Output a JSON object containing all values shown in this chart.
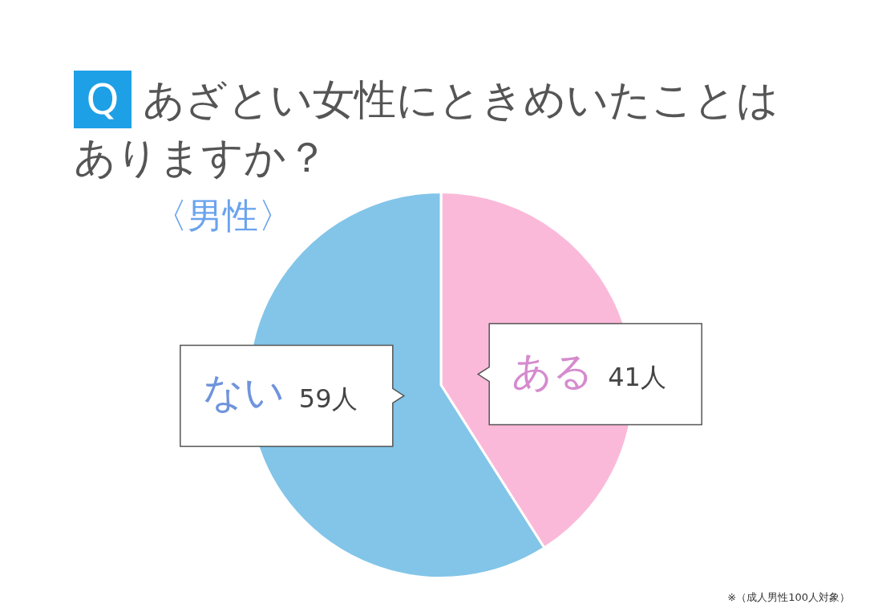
{
  "chart_data": {
    "type": "pie",
    "title": "Q あざとい女性にときめいたことはありますか？",
    "subtitle": "〈男性〉",
    "categories": [
      "ある",
      "ない"
    ],
    "values": [
      41,
      59
    ],
    "colors": [
      "#fbb9d9",
      "#82c5e8"
    ],
    "value_labels": [
      "41人",
      "59人"
    ],
    "legend": false,
    "annotations": [
      "※（成人男性100人対象）"
    ]
  }
}
